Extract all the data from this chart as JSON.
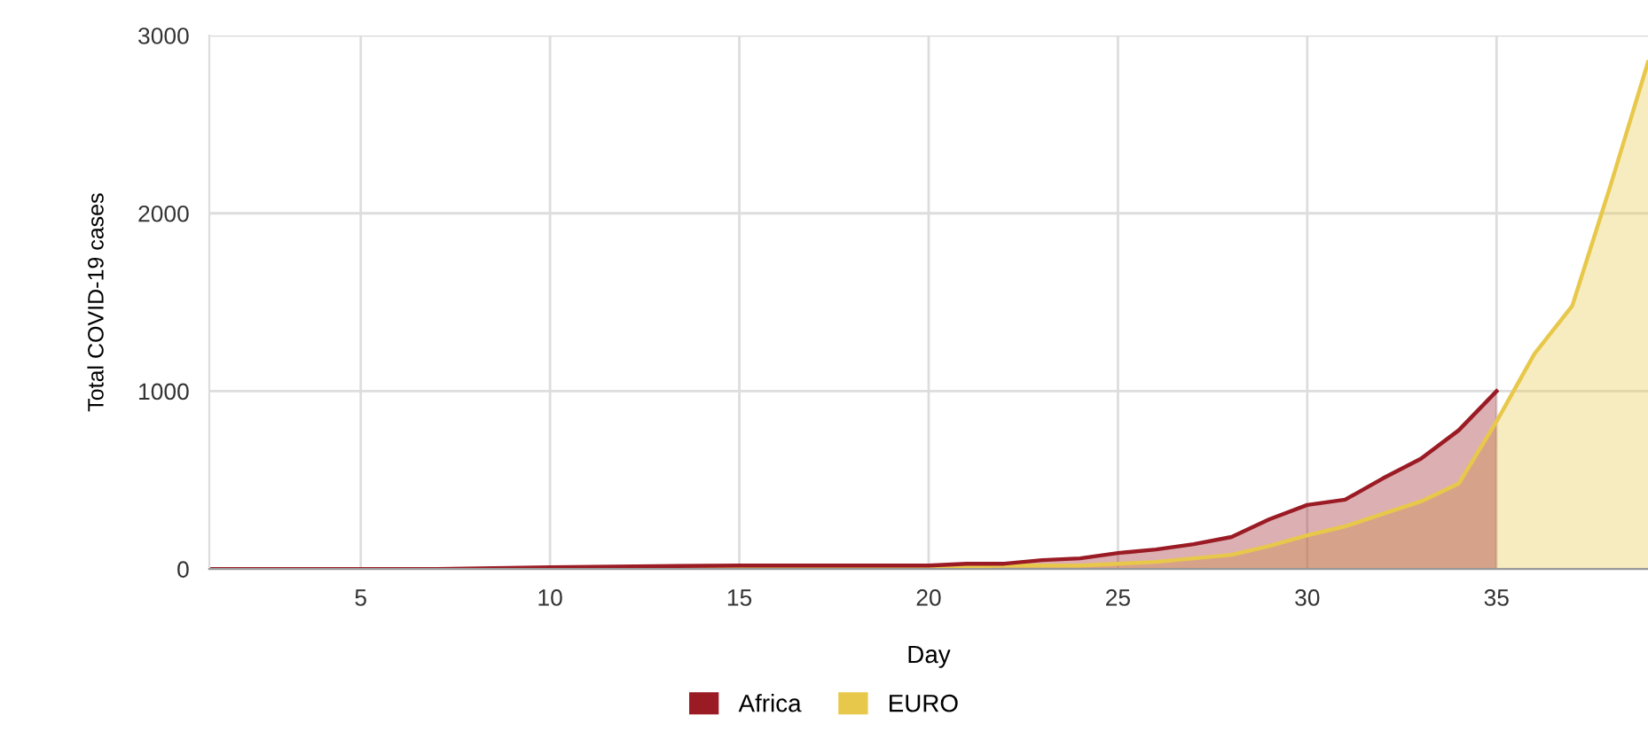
{
  "chart_data": {
    "type": "area",
    "xlabel": "Day",
    "ylabel": "Total COVID-19 cases",
    "xlim": [
      1,
      39
    ],
    "ylim": [
      0,
      3000
    ],
    "xticks": [
      5,
      10,
      15,
      20,
      25,
      30,
      35
    ],
    "yticks": [
      0,
      1000,
      2000,
      3000
    ],
    "grid": true,
    "legend": "bottom",
    "series": [
      {
        "name": "EURO",
        "color": "#e8c84a",
        "x": [
          1,
          5,
          10,
          15,
          20,
          22,
          24,
          25,
          26,
          27,
          28,
          29,
          30,
          31,
          32,
          33,
          34,
          35,
          36,
          37,
          38,
          39
        ],
        "values": [
          0,
          0,
          0,
          10,
          10,
          20,
          20,
          30,
          40,
          60,
          80,
          130,
          190,
          240,
          310,
          380,
          480,
          830,
          1210,
          1480,
          2150,
          2850
        ]
      },
      {
        "name": "Africa",
        "color": "#9b1b24",
        "x": [
          1,
          5,
          7,
          10,
          15,
          20,
          21,
          22,
          23,
          24,
          25,
          26,
          27,
          28,
          29,
          30,
          31,
          32,
          33,
          34,
          35
        ],
        "values": [
          0,
          0,
          0,
          10,
          20,
          20,
          30,
          30,
          50,
          60,
          90,
          110,
          140,
          180,
          280,
          360,
          390,
          510,
          620,
          780,
          1000
        ]
      }
    ]
  }
}
